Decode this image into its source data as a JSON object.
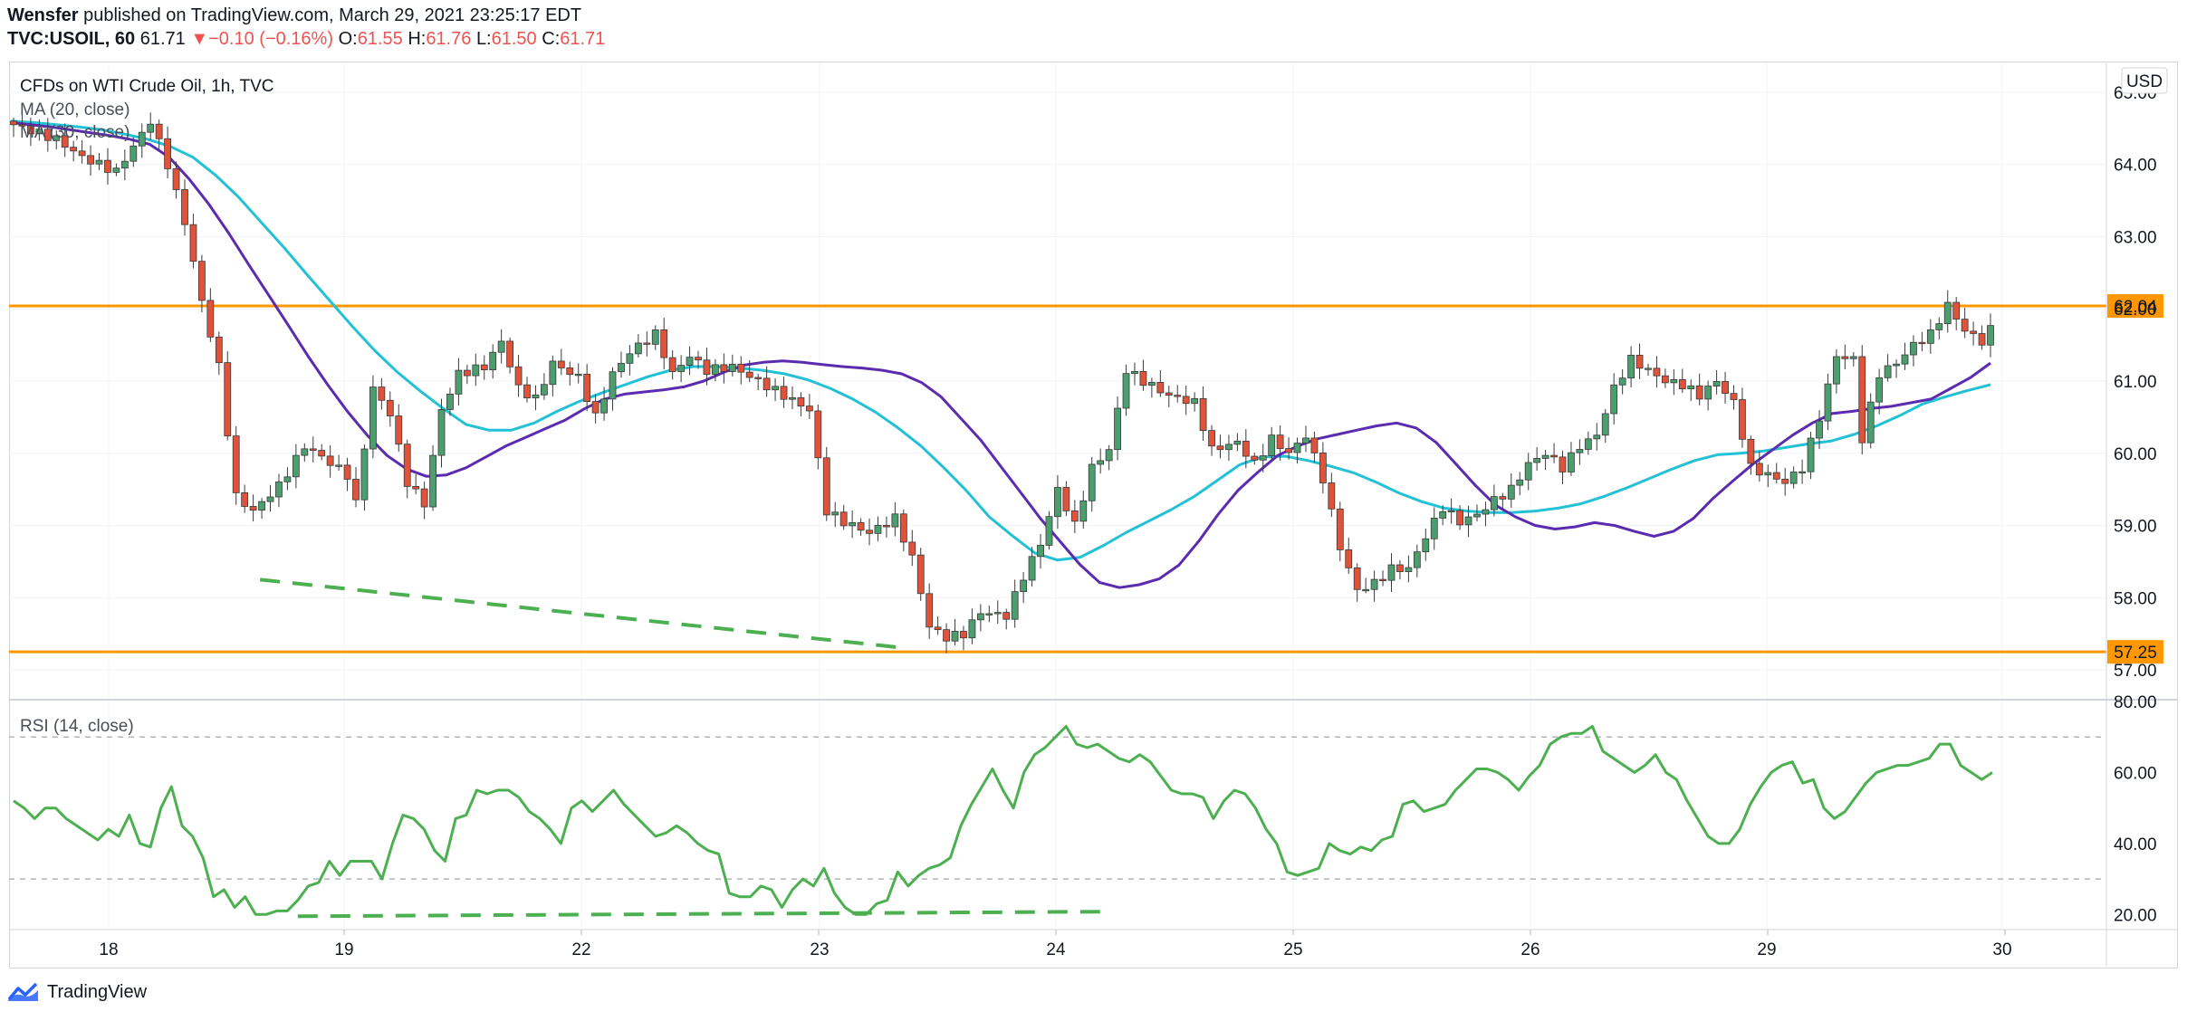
{
  "header": {
    "publisher": "Wensfer",
    "published_text": "published on TradingView.com, March 29, 2021 23:25:17 EDT",
    "symbol": "TVC:USOIL, 60",
    "last": "61.71",
    "change_arrow": "▼",
    "change": "−0.10 (−0.16%)",
    "o_label": "O:",
    "o_value": "61.55",
    "h_label": "H:",
    "h_value": "61.76",
    "l_label": "L:",
    "l_value": "61.50",
    "c_label": "C:",
    "c_value": "61.71"
  },
  "legend": {
    "title": "CFDs on WTI Crude Oil, 1h, TVC",
    "ma20": "MA (20, close)",
    "ma30": "MA (30, close)",
    "rsi": "RSI (14, close)"
  },
  "currency": "USD",
  "footer": {
    "brand": "TradingView"
  },
  "colors": {
    "up": "#4c9e6f",
    "down": "#e0533b",
    "ma20": "#5b2bb0",
    "ma30": "#22c1d6",
    "level": "#ff9800",
    "trend": "#4caf50",
    "rsi": "#4caf50",
    "grid": "#f0f3fa"
  },
  "chart_data": [
    {
      "type": "candlestick",
      "title": "CFDs on WTI Crude Oil, 1h, TVC",
      "ylim": [
        56.6,
        65.4
      ],
      "y_ticks": [
        "65.00",
        "64.00",
        "63.00",
        "62.00",
        "61.00",
        "60.00",
        "59.00",
        "58.00",
        "57.00"
      ],
      "x_ticks": [
        "18",
        "19",
        "22",
        "23",
        "24",
        "25",
        "26",
        "29",
        "30"
      ],
      "horizontal_levels": [
        {
          "value": 62.04,
          "label": "62.04"
        },
        {
          "value": 57.25,
          "label": "57.25"
        }
      ],
      "trendline": [
        [
          61.1,
          58.25
        ],
        [
          65.3,
          57.3
        ]
      ],
      "series": [
        {
          "name": "MA (20, close)",
          "values": [
            64.58,
            64.55,
            64.52,
            64.48,
            64.44,
            64.4,
            64.35,
            64.28,
            64.1,
            63.8,
            63.45,
            63.05,
            62.62,
            62.2,
            61.78,
            61.35,
            60.95,
            60.58,
            60.25,
            59.97,
            59.78,
            59.68,
            59.7,
            59.8,
            59.95,
            60.1,
            60.22,
            60.34,
            60.46,
            60.62,
            60.75,
            60.82,
            60.85,
            60.88,
            60.92,
            61.0,
            61.12,
            61.22,
            61.26,
            61.28,
            61.26,
            61.23,
            61.2,
            61.18,
            61.15,
            61.1,
            60.98,
            60.78,
            60.48,
            60.18,
            59.82,
            59.46,
            59.1,
            58.78,
            58.46,
            58.21,
            58.14,
            58.18,
            58.26,
            58.45,
            58.78,
            59.16,
            59.49,
            59.74,
            59.97,
            60.1,
            60.2,
            60.26,
            60.32,
            60.38,
            60.42,
            60.35,
            60.15,
            59.85,
            59.55,
            59.28,
            59.12,
            59.0,
            58.95,
            58.98,
            59.04,
            59.0,
            58.92,
            58.85,
            58.92,
            59.1,
            59.38,
            59.62,
            59.85,
            60.05,
            60.25,
            60.42,
            60.55,
            60.58,
            60.62,
            60.65,
            60.7,
            60.75,
            60.9,
            61.05,
            61.25
          ]
        },
        {
          "name": "MA (30, close)",
          "values": [
            64.6,
            64.58,
            64.55,
            64.52,
            64.48,
            64.42,
            64.35,
            64.25,
            64.1,
            63.85,
            63.55,
            63.2,
            62.85,
            62.48,
            62.12,
            61.76,
            61.42,
            61.12,
            60.86,
            60.62,
            60.4,
            60.32,
            60.32,
            60.42,
            60.58,
            60.72,
            60.84,
            60.95,
            61.06,
            61.15,
            61.2,
            61.2,
            61.18,
            61.15,
            61.1,
            61.02,
            60.9,
            60.75,
            60.57,
            60.35,
            60.1,
            59.8,
            59.48,
            59.12,
            58.86,
            58.62,
            58.52,
            58.56,
            58.72,
            58.9,
            59.06,
            59.22,
            59.4,
            59.62,
            59.84,
            59.95,
            59.96,
            59.9,
            59.82,
            59.73,
            59.6,
            59.45,
            59.33,
            59.24,
            59.2,
            59.18,
            59.18,
            59.2,
            59.24,
            59.3,
            59.4,
            59.52,
            59.65,
            59.78,
            59.9,
            59.98,
            60.0,
            60.03,
            60.08,
            60.13,
            60.17,
            60.26,
            60.38,
            60.52,
            60.68,
            60.78,
            60.87,
            60.95
          ]
        }
      ]
    },
    {
      "type": "line",
      "title": "RSI (14, close)",
      "ylim": [
        16,
        80
      ],
      "y_ticks": [
        "80.00",
        "60.00",
        "40.00",
        "20.00"
      ],
      "dashed_levels": [
        70,
        30
      ],
      "trendline": [
        [
          27,
          19.5
        ],
        [
          104,
          20.8
        ]
      ],
      "series": [
        {
          "name": "RSI (14, close)",
          "values": [
            52,
            50,
            47,
            50,
            50,
            47,
            45,
            43,
            41,
            44,
            42,
            48,
            40,
            39,
            50,
            56,
            45,
            42,
            36,
            25,
            27,
            22,
            25,
            20,
            20,
            21,
            21,
            24,
            28,
            29,
            35,
            31,
            35,
            35,
            35,
            30,
            40,
            48,
            47,
            44,
            38,
            35,
            47,
            48,
            55,
            54,
            55,
            55,
            53,
            49,
            47,
            44,
            40,
            50,
            52,
            49,
            52,
            55,
            51,
            48,
            45,
            42,
            43,
            45,
            43,
            40,
            38,
            37,
            26,
            25,
            25,
            28,
            27,
            22,
            27,
            30,
            28,
            33,
            26,
            22,
            20,
            20,
            23,
            24,
            32,
            28,
            31,
            33,
            34,
            36,
            45,
            51,
            56,
            61,
            55,
            50,
            60,
            65,
            67,
            70,
            73,
            68,
            67,
            68,
            66,
            64,
            63,
            65,
            63,
            59,
            55,
            54,
            54,
            53,
            47,
            52,
            55,
            54,
            50,
            44,
            40,
            32,
            31,
            32,
            33,
            40,
            38,
            37,
            39,
            38,
            41,
            42,
            51,
            52,
            49,
            50,
            51,
            55,
            58,
            61,
            61,
            60,
            58,
            55,
            59,
            62,
            68,
            70,
            71,
            71,
            73,
            66,
            64,
            62,
            60,
            62,
            65,
            60,
            58,
            52,
            47,
            42,
            40,
            40,
            44,
            51,
            56,
            60,
            62,
            63,
            57,
            58,
            50,
            47,
            49,
            53,
            57,
            60,
            61,
            62,
            62,
            63,
            64,
            68,
            68,
            62,
            60,
            58,
            60
          ]
        }
      ]
    }
  ]
}
